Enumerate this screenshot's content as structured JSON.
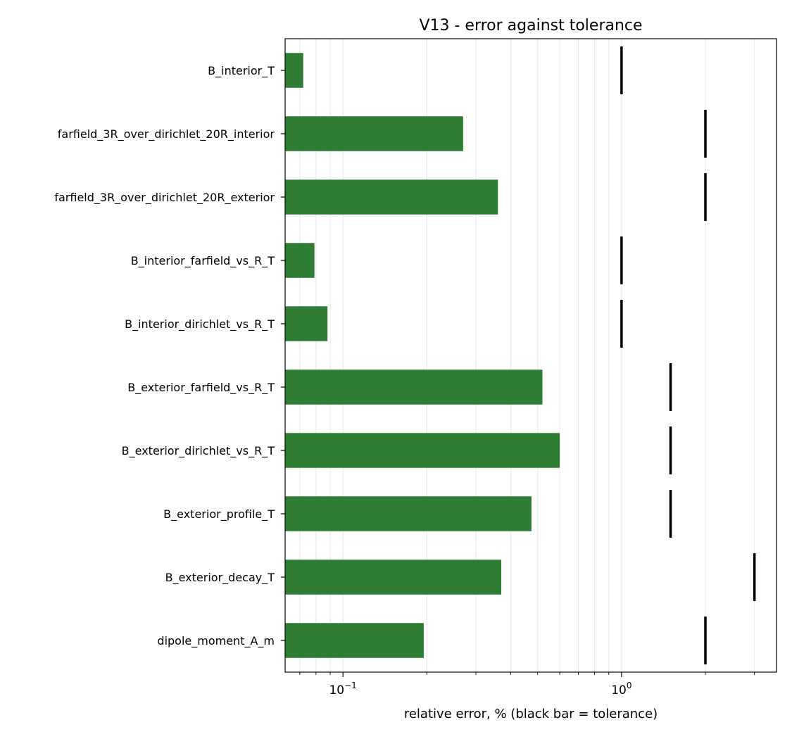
{
  "chart_data": {
    "type": "bar",
    "orientation": "horizontal",
    "title": "V13 - error against tolerance",
    "xlabel": "relative error, % (black bar = tolerance)",
    "ylabel": "",
    "x_scale": "log",
    "xlim": [
      0.062,
      3.6
    ],
    "grid": "vertical",
    "x_ticks": [
      {
        "value": 0.1,
        "base": "10",
        "exp": "−1"
      },
      {
        "value": 1,
        "base": "10",
        "exp": "0"
      }
    ],
    "categories": [
      "B_interior_T",
      "farfield_3R_over_dirichlet_20R_interior",
      "farfield_3R_over_dirichlet_20R_exterior",
      "B_interior_farfield_vs_R_T",
      "B_interior_dirichlet_vs_R_T",
      "B_exterior_farfield_vs_R_T",
      "B_exterior_dirichlet_vs_R_T",
      "B_exterior_profile_T",
      "B_exterior_decay_T",
      "dipole_moment_A_m"
    ],
    "values": [
      0.072,
      0.27,
      0.36,
      0.079,
      0.088,
      0.52,
      0.6,
      0.475,
      0.37,
      0.195
    ],
    "tolerances": [
      1.0,
      2.0,
      2.0,
      1.0,
      1.0,
      1.5,
      1.5,
      1.5,
      3.0,
      2.0
    ],
    "bar_color": "#2e7d32",
    "tolerance_color": "#000000"
  }
}
